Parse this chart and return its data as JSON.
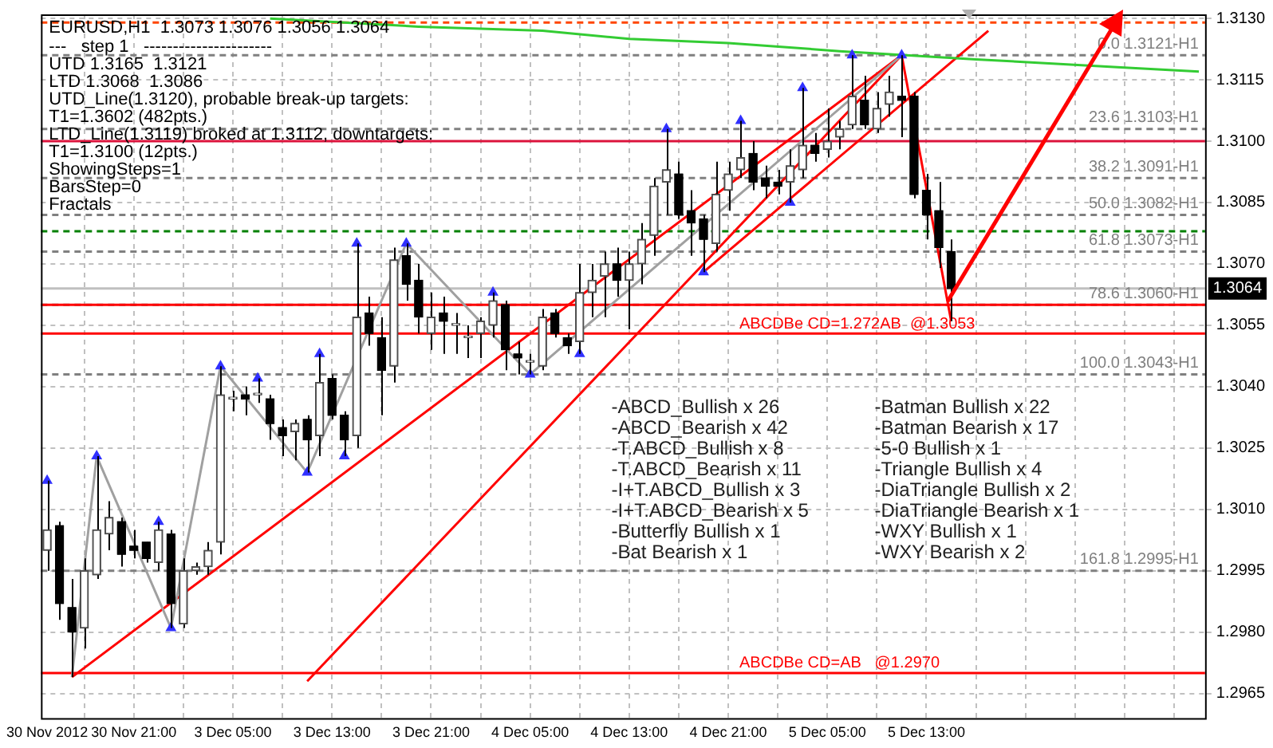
{
  "chart_data": {
    "type": "candlestick",
    "title": "EURUSD,H1  1.3073 1.3076 1.3056 1.3064",
    "categories": [
      "30 Nov 2012",
      null,
      null,
      null,
      null,
      null,
      null,
      "30 Nov 21:00",
      null,
      null,
      null,
      null,
      null,
      null,
      null,
      "3 Dec 05:00",
      null,
      null,
      null,
      null,
      null,
      null,
      null,
      "3 Dec 13:00",
      null,
      null,
      null,
      null,
      null,
      null,
      null,
      "3 Dec 21:00",
      null,
      null,
      null,
      null,
      null,
      null,
      null,
      "4 Dec 05:00",
      null,
      null,
      null,
      null,
      null,
      null,
      null,
      "4 Dec 13:00",
      null,
      null,
      null,
      null,
      null,
      null,
      null,
      "4 Dec 21:00",
      null,
      null,
      null,
      null,
      null,
      null,
      null,
      "5 Dec 05:00",
      null,
      null,
      null,
      null,
      null,
      null,
      null,
      "5 Dec 13:00",
      null,
      null,
      null,
      null,
      null,
      null,
      null,
      null,
      null,
      null,
      null,
      null,
      null,
      null,
      null,
      null,
      null,
      null,
      null,
      null,
      null,
      null
    ],
    "color": "#000000",
    "colors": [
      "#505050",
      "#000000",
      "#000000",
      "#505050",
      "#505050",
      "#505050",
      "#000000",
      "#000000",
      "#000000",
      "#505050",
      "#000000",
      "#505050",
      "#505050",
      "#505050",
      "#505050",
      "#505050",
      "#000000",
      "#505050",
      "#000000",
      "#000000",
      "#505050",
      "#000000",
      "#505050",
      "#000000",
      "#000000",
      "#505050",
      "#000000",
      "#000000",
      "#505050",
      "#000000",
      "#000000",
      "#505050",
      "#000000",
      "#505050",
      "#505050",
      "#505050",
      "#505050",
      "#000000",
      "#000000",
      "#505050",
      "#505050",
      "#000000",
      "#000000",
      "#505050",
      "#505050",
      "#505050",
      "#000000",
      "#505050",
      "#505050",
      "#505050",
      "#505050",
      "#000000",
      "#000000",
      "#000000",
      "#505050",
      "#505050",
      "#505050",
      "#000000",
      "#000000",
      "#000000",
      "#505050",
      "#505050",
      "#000000",
      "#505050",
      "#505050",
      "#505050",
      "#000000",
      "#505050",
      "#505050",
      "#000000",
      "#000000",
      "#000000",
      "#000000",
      "#000000",
      null,
      null,
      null,
      null,
      null,
      null,
      null,
      null,
      null,
      null,
      null,
      null,
      null,
      null,
      null,
      null,
      null,
      null,
      null,
      null
    ],
    "ohlc": [
      [
        1.3,
        1.3017,
        1.2995,
        1.3005
      ],
      [
        1.3006,
        1.3007,
        1.2983,
        1.2987
      ],
      [
        1.2986,
        1.2993,
        1.2969,
        1.298
      ],
      [
        1.2981,
        1.2998,
        1.2976,
        1.2995
      ],
      [
        1.2994,
        1.3023,
        1.2993,
        1.3005
      ],
      [
        1.3004,
        1.3012,
        1.3,
        1.3008
      ],
      [
        1.3007,
        1.3008,
        1.2996,
        1.2999
      ],
      [
        1.3001,
        1.3005,
        1.2998,
        1.3
      ],
      [
        1.3002,
        1.3002,
        1.2997,
        1.2998
      ],
      [
        1.2997,
        1.3007,
        1.2995,
        1.3005
      ],
      [
        1.3004,
        1.3005,
        1.2981,
        1.2987
      ],
      [
        1.2982,
        1.2998,
        1.2981,
        1.2995
      ],
      [
        1.2995,
        1.2997,
        1.2994,
        1.2996
      ],
      [
        1.2996,
        1.3002,
        1.2994,
        1.3
      ],
      [
        1.3002,
        1.3045,
        1.2999,
        1.3038
      ],
      [
        1.3037,
        1.3039,
        1.3034,
        1.3037
      ],
      [
        1.3038,
        1.304,
        1.3033,
        1.3037
      ],
      [
        1.3038,
        1.3042,
        1.3036,
        1.3038
      ],
      [
        1.3037,
        1.3038,
        1.3027,
        1.3031
      ],
      [
        1.303,
        1.3032,
        1.3023,
        1.3028
      ],
      [
        1.3029,
        1.3032,
        1.3022,
        1.3031
      ],
      [
        1.3032,
        1.3033,
        1.3019,
        1.3027
      ],
      [
        1.3028,
        1.3048,
        1.3023,
        1.3041
      ],
      [
        1.3042,
        1.3043,
        1.3032,
        1.3033
      ],
      [
        1.3033,
        1.3034,
        1.3023,
        1.3027
      ],
      [
        1.3028,
        1.3075,
        1.3025,
        1.3057
      ],
      [
        1.3058,
        1.3062,
        1.305,
        1.3053
      ],
      [
        1.3052,
        1.3057,
        1.3033,
        1.3044
      ],
      [
        1.3045,
        1.3074,
        1.3041,
        1.3071
      ],
      [
        1.3072,
        1.3075,
        1.3061,
        1.3065
      ],
      [
        1.3066,
        1.307,
        1.3053,
        1.3057
      ],
      [
        1.3053,
        1.3063,
        1.3049,
        1.3057
      ],
      [
        1.3058,
        1.3062,
        1.3048,
        1.3056
      ],
      [
        1.3055,
        1.3058,
        1.3048,
        1.3055
      ],
      [
        1.3052,
        1.3055,
        1.3047,
        1.3052
      ],
      [
        1.3053,
        1.3057,
        1.3047,
        1.3056
      ],
      [
        1.3055,
        1.3063,
        1.3052,
        1.3061
      ],
      [
        1.306,
        1.3061,
        1.3044,
        1.3049
      ],
      [
        1.3048,
        1.3051,
        1.3043,
        1.3047
      ],
      [
        1.3046,
        1.3048,
        1.3043,
        1.3046
      ],
      [
        1.3045,
        1.3059,
        1.3044,
        1.3057
      ],
      [
        1.3058,
        1.3059,
        1.3052,
        1.3053
      ],
      [
        1.3052,
        1.3053,
        1.3048,
        1.305
      ],
      [
        1.3051,
        1.307,
        1.3048,
        1.3063
      ],
      [
        1.3063,
        1.307,
        1.3057,
        1.3066
      ],
      [
        1.3067,
        1.3073,
        1.3057,
        1.307
      ],
      [
        1.307,
        1.3074,
        1.3062,
        1.3066
      ],
      [
        1.3066,
        1.3073,
        1.3054,
        1.307
      ],
      [
        1.307,
        1.308,
        1.3065,
        1.3076
      ],
      [
        1.3077,
        1.3091,
        1.3072,
        1.3089
      ],
      [
        1.309,
        1.3103,
        1.3082,
        1.3093
      ],
      [
        1.3092,
        1.3095,
        1.3081,
        1.3082
      ],
      [
        1.3083,
        1.3088,
        1.3072,
        1.308
      ],
      [
        1.3081,
        1.3082,
        1.3068,
        1.3076
      ],
      [
        1.3075,
        1.3095,
        1.3073,
        1.3087
      ],
      [
        1.3088,
        1.3095,
        1.3083,
        1.3092
      ],
      [
        1.3093,
        1.3105,
        1.3091,
        1.3096
      ],
      [
        1.3097,
        1.31,
        1.3088,
        1.309
      ],
      [
        1.3091,
        1.3094,
        1.3086,
        1.3089
      ],
      [
        1.309,
        1.3093,
        1.3087,
        1.3089
      ],
      [
        1.309,
        1.3098,
        1.3085,
        1.3094
      ],
      [
        1.3093,
        1.3113,
        1.3091,
        1.3099
      ],
      [
        1.3099,
        1.3102,
        1.3095,
        1.3097
      ],
      [
        1.3098,
        1.3108,
        1.3096,
        1.31
      ],
      [
        1.3101,
        1.3105,
        1.3098,
        1.3103
      ],
      [
        1.3104,
        1.3121,
        1.3103,
        1.3111
      ],
      [
        1.311,
        1.3116,
        1.3103,
        1.3104
      ],
      [
        1.3103,
        1.3112,
        1.3102,
        1.3108
      ],
      [
        1.3109,
        1.3116,
        1.3106,
        1.3112
      ],
      [
        1.3111,
        1.3121,
        1.3101,
        1.311
      ],
      [
        1.3111,
        1.3112,
        1.3086,
        1.3087
      ],
      [
        1.3088,
        1.3092,
        1.3076,
        1.3082
      ],
      [
        1.3083,
        1.309,
        1.3069,
        1.3074
      ],
      [
        1.3073,
        1.3076,
        1.3056,
        1.3064
      ],
      null,
      null,
      null,
      null,
      null,
      null,
      null,
      null,
      null,
      null,
      null,
      null,
      null,
      null,
      null,
      null,
      null,
      null,
      null,
      null
    ],
    "series": [
      {
        "type": "line",
        "color": "#33cc33",
        "values": [
          null,
          null,
          null,
          null,
          null,
          null,
          null,
          null,
          null,
          null,
          null,
          null,
          null,
          null,
          null,
          null,
          null,
          null,
          1.313,
          null,
          null,
          null,
          null,
          null,
          null,
          null,
          null,
          null,
          null,
          null,
          1.3128,
          null,
          null,
          null,
          null,
          null,
          null,
          null,
          null,
          null,
          1.3127,
          null,
          null,
          null,
          null,
          null,
          null,
          1.3125,
          null,
          null,
          null,
          null,
          null,
          null,
          null,
          1.3124,
          null,
          null,
          null,
          null,
          null,
          null,
          null,
          null,
          1.3122,
          null,
          null,
          null,
          null,
          null,
          null,
          null,
          null,
          null,
          null,
          1.312,
          null,
          null,
          null,
          null,
          null,
          null,
          null,
          null,
          null,
          null,
          null,
          1.3118,
          null,
          null,
          null,
          null,
          null,
          1.3117
        ]
      },
      {
        "type": "line",
        "color": "#a0a0a0",
        "values": [
          null,
          null,
          1.2969,
          null,
          1.3023,
          null,
          null,
          null,
          null,
          null,
          1.2981,
          null,
          null,
          null,
          1.3045,
          null,
          null,
          null,
          null,
          null,
          null,
          1.3019,
          null,
          null,
          null,
          null,
          null,
          null,
          null,
          1.3075,
          null,
          null,
          null,
          null,
          null,
          null,
          null,
          null,
          null,
          1.3043,
          null,
          null,
          null,
          null,
          null,
          null,
          null,
          null,
          null,
          null,
          null,
          null,
          null,
          null,
          null,
          null,
          null,
          null,
          null,
          null,
          null,
          null,
          null,
          null,
          null,
          null,
          null,
          null,
          null,
          1.3121,
          null,
          null,
          null,
          null,
          null,
          null,
          null,
          null,
          null,
          null,
          null,
          null,
          null,
          null,
          null,
          null,
          null,
          null,
          null,
          null,
          null,
          null,
          null,
          null
        ]
      },
      {
        "type": "line",
        "color": "#ff0000",
        "values": [
          null,
          null,
          null,
          null,
          null,
          null,
          null,
          null,
          null,
          null,
          null,
          null,
          null,
          null,
          null,
          null,
          null,
          null,
          null,
          null,
          null,
          null,
          null,
          null,
          null,
          null,
          null,
          null,
          null,
          null,
          null,
          null,
          null,
          null,
          null,
          null,
          null,
          null,
          null,
          null,
          null,
          null,
          null,
          null,
          null,
          null,
          null,
          null,
          null,
          null,
          null,
          null,
          null,
          null,
          null,
          null,
          null,
          null,
          null,
          null,
          null,
          null,
          null,
          null,
          null,
          null,
          null,
          null,
          null,
          1.3121,
          null,
          null,
          null,
          1.3056,
          null,
          null,
          null,
          null,
          null,
          null,
          null,
          null,
          null,
          null,
          null,
          null,
          null,
          null,
          null,
          null,
          null,
          null,
          null,
          null
        ]
      },
      {
        "type": "line",
        "color": "#ff0000",
        "values": [
          null,
          null,
          1.2969,
          null,
          null,
          null,
          null,
          null,
          null,
          null,
          null,
          null,
          null,
          null,
          null,
          null,
          null,
          null,
          null,
          null,
          null,
          null,
          null,
          null,
          null,
          null,
          null,
          null,
          null,
          null,
          null,
          null,
          null,
          null,
          null,
          null,
          null,
          null,
          null,
          null,
          null,
          null,
          null,
          null,
          null,
          null,
          null,
          null,
          null,
          null,
          null,
          null,
          null,
          null,
          null,
          null,
          null,
          null,
          null,
          null,
          null,
          null,
          null,
          null,
          null,
          null,
          null,
          null,
          null,
          1.3121,
          null,
          null,
          null,
          null,
          null,
          null,
          null,
          null,
          null,
          null,
          null,
          null,
          null,
          null,
          null,
          null,
          null,
          null,
          null,
          null,
          null,
          null,
          null,
          null
        ]
      },
      {
        "type": "line",
        "color": "#ff0000",
        "values": [
          null,
          null,
          null,
          null,
          null,
          null,
          null,
          null,
          null,
          null,
          null,
          null,
          null,
          null,
          null,
          null,
          null,
          null,
          null,
          null,
          null,
          1.2968,
          null,
          null,
          null,
          null,
          null,
          null,
          null,
          null,
          null,
          null,
          null,
          null,
          null,
          null,
          null,
          null,
          null,
          null,
          null,
          null,
          null,
          null,
          null,
          null,
          null,
          null,
          null,
          null,
          null,
          null,
          null,
          null,
          null,
          null,
          null,
          null,
          null,
          null,
          null,
          null,
          null,
          null,
          null,
          null,
          null,
          null,
          null,
          1.3121,
          null,
          null,
          null,
          null,
          null,
          null,
          null,
          null,
          null,
          null,
          null,
          null,
          null,
          null,
          null,
          null,
          null,
          null,
          null,
          null,
          null,
          null,
          null,
          null
        ]
      },
      {
        "type": "line",
        "color": "#ff0000",
        "values": [
          null,
          null,
          null,
          null,
          null,
          null,
          null,
          null,
          null,
          null,
          null,
          null,
          null,
          null,
          null,
          null,
          null,
          null,
          null,
          null,
          null,
          null,
          null,
          null,
          null,
          null,
          null,
          null,
          null,
          null,
          null,
          null,
          null,
          null,
          null,
          null,
          null,
          null,
          null,
          null,
          null,
          null,
          null,
          null,
          null,
          null,
          null,
          null,
          null,
          null,
          null,
          null,
          null,
          1.3068,
          null,
          null,
          null,
          null,
          null,
          null,
          null,
          null,
          null,
          null,
          null,
          null,
          null,
          null,
          null,
          null,
          null,
          null,
          null,
          null,
          null,
          null,
          1.3127,
          null,
          null,
          null,
          null,
          null,
          null,
          null,
          null,
          null,
          null,
          null,
          null,
          null,
          null,
          null,
          null,
          null
        ]
      },
      {
        "type": "scatter",
        "color": "#3030ff",
        "marker": "triangle",
        "values": [
          1.3017,
          null,
          null,
          null,
          1.3023,
          null,
          null,
          null,
          null,
          1.3007,
          null,
          null,
          null,
          null,
          1.3045,
          null,
          null,
          1.3042,
          null,
          null,
          null,
          null,
          1.3048,
          null,
          null,
          1.3075,
          null,
          null,
          null,
          1.3075,
          null,
          null,
          null,
          null,
          null,
          null,
          1.3063,
          null,
          null,
          null,
          null,
          null,
          null,
          null,
          null,
          null,
          null,
          null,
          null,
          null,
          1.3103,
          null,
          null,
          null,
          null,
          null,
          1.3105,
          null,
          null,
          null,
          null,
          1.3113,
          null,
          null,
          null,
          1.3121,
          null,
          null,
          null,
          1.3121,
          null,
          null,
          null,
          null,
          null,
          null,
          null,
          null,
          null,
          null,
          null,
          null,
          null,
          null,
          null,
          null,
          null,
          null,
          null,
          null,
          null,
          null,
          null,
          null
        ]
      },
      {
        "type": "scatter",
        "color": "#3030ff",
        "marker": "triangle",
        "values": [
          null,
          null,
          null,
          null,
          null,
          null,
          null,
          null,
          null,
          null,
          1.2981,
          null,
          null,
          null,
          null,
          null,
          null,
          null,
          null,
          null,
          null,
          1.3019,
          null,
          null,
          1.3023,
          null,
          null,
          null,
          null,
          null,
          null,
          null,
          null,
          null,
          null,
          null,
          null,
          null,
          null,
          1.3043,
          null,
          null,
          null,
          1.3048,
          null,
          null,
          null,
          null,
          null,
          null,
          null,
          null,
          null,
          1.3068,
          null,
          null,
          null,
          null,
          null,
          null,
          1.3085,
          null,
          null,
          null,
          null,
          null,
          null,
          null,
          null,
          null,
          null,
          null,
          null,
          null,
          null,
          null,
          null,
          null,
          null,
          null,
          null,
          null,
          null,
          null,
          null,
          null,
          null,
          null,
          null,
          null,
          null,
          null,
          null,
          null
        ]
      }
    ],
    "ylim": [
      1.2959,
      1.3131
    ],
    "yticks": [
      1.2965,
      {
        "value": 1.298,
        "label": "1.2980"
      },
      1.2995,
      {
        "value": 1.301,
        "label": "1.3010"
      },
      1.3025,
      {
        "value": 1.304,
        "label": "1.3040"
      },
      1.3055,
      {
        "value": 1.307,
        "label": "1.3070"
      },
      1.3085,
      {
        "value": 1.31,
        "label": "1.3100"
      },
      1.3115,
      {
        "value": 1.313,
        "label": "1.3130"
      }
    ],
    "grid": true,
    "ref_lines": [
      {
        "axis": "y",
        "value": 1.3129,
        "color": "#ff4500",
        "line_style": "dashed"
      },
      {
        "axis": "y",
        "value": 1.3121,
        "label": "0.0 1.3121-H1",
        "color": "#808080",
        "line_style": "dashed"
      },
      {
        "axis": "y",
        "value": 1.3103,
        "label": "23.6 1.3103-H1",
        "color": "#808080",
        "line_style": "dashed"
      },
      {
        "axis": "y",
        "value": 1.31,
        "color": "#dc143c"
      },
      {
        "axis": "y",
        "value": 1.3091,
        "label": "38.2 1.3091-H1",
        "color": "#808080",
        "line_style": "dashed"
      },
      {
        "axis": "y",
        "value": 1.3082,
        "label": "50.0 1.3082-H1",
        "color": "#808080",
        "line_style": "dashed"
      },
      {
        "axis": "y",
        "value": 1.3078,
        "color": "#008000",
        "line_style": "dashed"
      },
      {
        "axis": "y",
        "value": 1.3073,
        "label": "61.8 1.3073-H1",
        "color": "#808080",
        "line_style": "dashed"
      },
      {
        "axis": "y",
        "value": 1.3064,
        "color": "#c0c0c0"
      },
      {
        "axis": "y",
        "value": 1.306,
        "label": "78.6 1.3060-H1",
        "color": "#808080",
        "line_style": "dashed"
      },
      {
        "axis": "y",
        "value": 1.306,
        "color": "#ff0000"
      },
      {
        "axis": "y",
        "value": 1.3053,
        "label": "ABCDBe CD=1.272AB  @1.3053",
        "color": "#ff0000"
      },
      {
        "axis": "y",
        "value": 1.3043,
        "label": "100.0 1.3043-H1",
        "color": "#808080",
        "line_style": "dashed"
      },
      {
        "axis": "y",
        "value": 1.2995,
        "label": "161.8 1.2995-H1",
        "color": "#808080",
        "line_style": "dashed"
      },
      {
        "axis": "y",
        "value": 1.297,
        "label": "ABCDBe CD=AB   @1.2970",
        "color": "#ff0000"
      }
    ],
    "annotations": [
      "---   step 1   ----------------------",
      "UTD 1.3165  1.3121",
      "LTD 1.3068  1.3086",
      "UTD_Line(1.3120), probable break-up targets:",
      "T1=1.3602 (482pts.)",
      "LTD_Line(1.3119) broked at 1.3112, downtargets:",
      "T1=1.3100 (12pts.)",
      "ShowingSteps=1",
      "BarsStep=0",
      "Fractals",
      "-ABCD_Bullish x 26",
      "-ABCD_Bearish x 42",
      "-T.ABCD_Bullish x 8",
      "-T.ABCD_Bearish x 11",
      "-I+T.ABCD_Bullish x 3",
      "-I+T.ABCD_Bearish x 5",
      "-Butterfly Bullish x 1",
      "-Bat Bearish x 1",
      "-Batman Bullish x 22",
      "-Batman Bearish x 17",
      "-5-0 Bullish x 1",
      "-Triangle Bullish x 4",
      "-DiaTriangle Bullish x 2",
      "-DiaTriangle Bearish x 1",
      "-WXY Bullish x 1",
      "-WXY Bearish x 2",
      {
        "text": "1.3064",
        "y": 1.3064
      }
    ]
  }
}
